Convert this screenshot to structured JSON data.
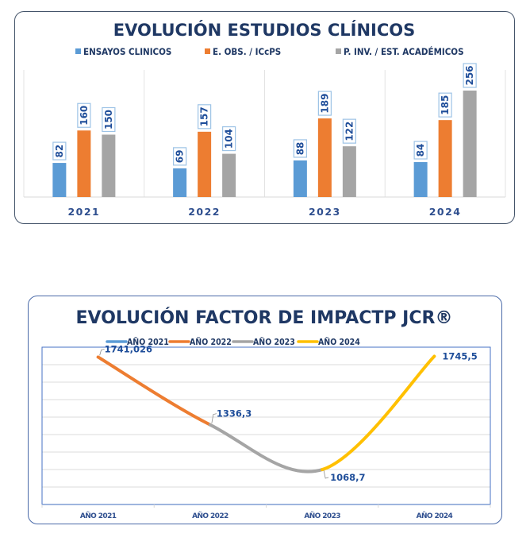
{
  "chart_data": [
    {
      "type": "bar",
      "title": "EVOLUCIÓN ESTUDIOS CLÍNICOS",
      "categories": [
        "2021",
        "2022",
        "2023",
        "2024"
      ],
      "series": [
        {
          "name": "ENSAYOS CLINICOS",
          "color": "#5b9bd5",
          "values": [
            82,
            69,
            88,
            84
          ]
        },
        {
          "name": "E. OBS. / ICcPS",
          "color": "#ed7d31",
          "values": [
            160,
            157,
            189,
            185
          ]
        },
        {
          "name": "P. INV. / EST. ACADÉMICOS",
          "color": "#a5a5a5",
          "values": [
            150,
            104,
            122,
            256
          ]
        }
      ],
      "xlabel": "",
      "ylabel": "",
      "ylim": [
        0,
        256
      ],
      "legend": "top",
      "grid": false,
      "data_labels": true
    },
    {
      "type": "line",
      "title": "EVOLUCIÓN FACTOR DE IMPACTP JCR®",
      "categories": [
        "AÑO 2021",
        "AÑO 2022",
        "AÑO 2023",
        "AÑO 2024"
      ],
      "points": [
        1741.026,
        1336.3,
        1068.7,
        1745.5
      ],
      "point_labels": [
        "1741,026",
        "1336,3",
        "1068,7",
        "1745,5"
      ],
      "series": [
        {
          "name": "AÑO 2021",
          "color": "#5b9bd5",
          "segment": [
            0,
            0
          ]
        },
        {
          "name": "AÑO 2022",
          "color": "#ed7d31",
          "segment": [
            0,
            1
          ]
        },
        {
          "name": "AÑO 2023",
          "color": "#a5a5a5",
          "segment": [
            1,
            2
          ]
        },
        {
          "name": "AÑO 2024",
          "color": "#ffc000",
          "segment": [
            2,
            3
          ]
        }
      ],
      "ylim": [
        860,
        1800
      ],
      "grid": true,
      "legend": "top",
      "smooth": true
    }
  ]
}
